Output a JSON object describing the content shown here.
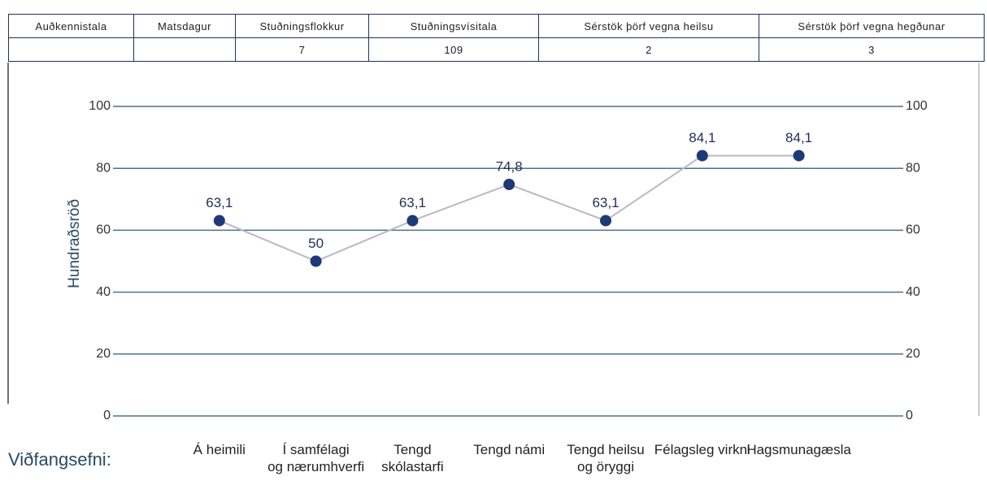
{
  "table": {
    "headers": [
      "Auðkennistala",
      "Matsdagur",
      "Stuðningsflokkur",
      "Stuðningsvísitala",
      "Sérstök þörf vegna heilsu",
      "Sérstök þörf vegna hegðunar"
    ],
    "values": [
      null,
      null,
      "7",
      "109",
      "2",
      "3"
    ]
  },
  "chart_data": {
    "type": "line",
    "y_label": "Hundraðsröð",
    "x_label": "Viðfangsefni:",
    "categories": [
      "Á heimili",
      "Í samfélagi\nog nærumhverfi",
      "Tengd\nskólastarfi",
      "Tengd námi",
      "Tengd heilsu\nog öryggi",
      "Félagsleg virkni",
      "Hagsmunagæsla"
    ],
    "series": [
      {
        "name": "Hundraðsröð",
        "color": "#b9b9c6",
        "marker_color": "#1f3878",
        "values": [
          63.1,
          50,
          63.1,
          74.8,
          63.1,
          84.1,
          84.1
        ],
        "value_labels": [
          "63,1",
          "50",
          "63,1",
          "74,8",
          "63,1",
          "84,1",
          "84,1"
        ]
      }
    ],
    "ylim": [
      0,
      100
    ],
    "yticks": [
      0,
      20,
      40,
      60,
      80,
      100
    ],
    "y2lim": [
      0,
      100
    ],
    "y2ticks": [
      0,
      20,
      40,
      60,
      80,
      100
    ],
    "grid": true
  }
}
